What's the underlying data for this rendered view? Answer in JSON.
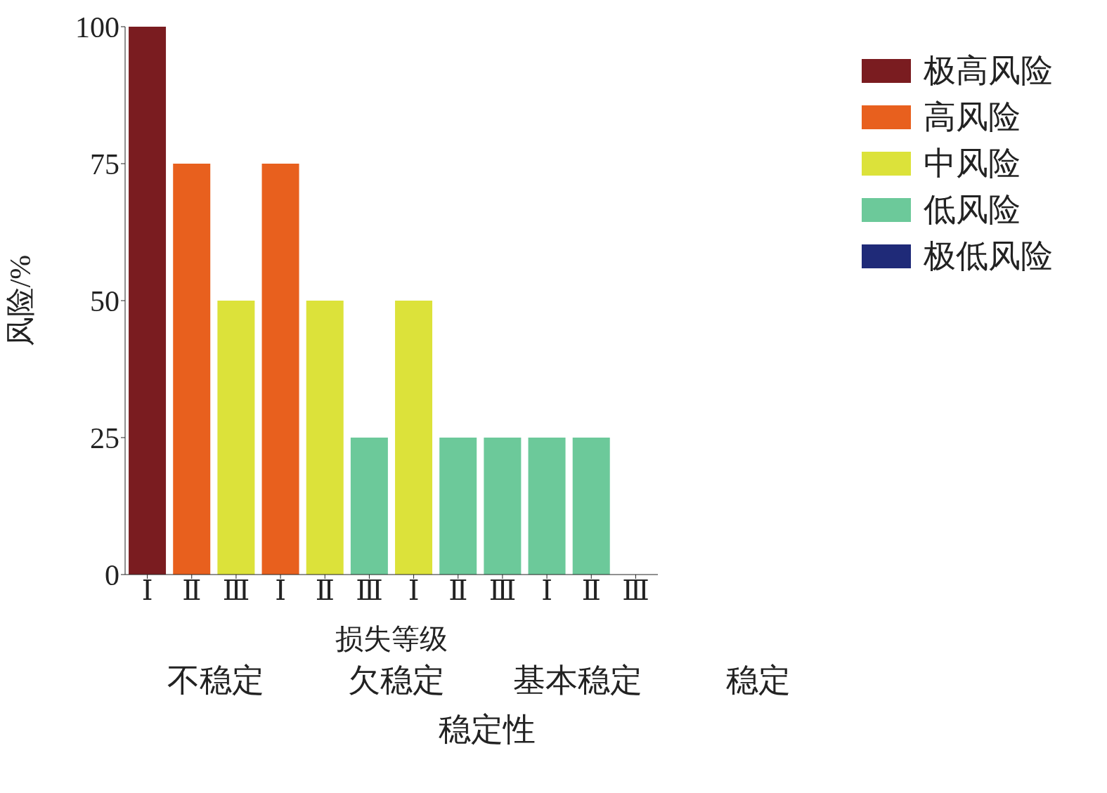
{
  "chart_data": {
    "type": "bar",
    "stacked": true,
    "ylabel": "风险/%",
    "xlabel": "损失等级",
    "categories": [
      "Ⅰ",
      "Ⅱ",
      "Ⅲ",
      "Ⅰ",
      "Ⅱ",
      "Ⅲ",
      "Ⅰ",
      "Ⅱ",
      "Ⅲ",
      "Ⅰ",
      "Ⅱ",
      "Ⅲ"
    ],
    "series": [
      {
        "name": "极高风险",
        "color": "#7a1c20",
        "values": [
          100,
          null,
          null,
          null,
          null,
          null,
          null,
          null,
          null,
          null,
          null,
          null
        ]
      },
      {
        "name": "高风险",
        "color": "#e8601e",
        "values": [
          null,
          75,
          null,
          75,
          null,
          null,
          null,
          null,
          null,
          null,
          null,
          null
        ]
      },
      {
        "name": "中风险",
        "color": "#dce23a",
        "values": [
          null,
          null,
          50,
          null,
          50,
          null,
          50,
          null,
          null,
          null,
          null,
          null
        ]
      },
      {
        "name": "低风险",
        "color": "#6cc99a",
        "values": [
          null,
          null,
          null,
          null,
          null,
          25,
          null,
          25,
          25,
          25,
          25,
          null
        ]
      },
      {
        "name": "极低风险",
        "color": "#1f2a78",
        "values": [
          null,
          null,
          null,
          null,
          null,
          null,
          null,
          null,
          null,
          null,
          null,
          0
        ]
      }
    ],
    "ylim": [
      0,
      100
    ],
    "yticks": [
      0,
      25,
      50,
      75,
      100
    ],
    "grid": false,
    "legend": "top right",
    "annotations": [
      "不稳定",
      "欠稳定",
      "基本稳定",
      "稳定",
      "稳定性"
    ]
  }
}
